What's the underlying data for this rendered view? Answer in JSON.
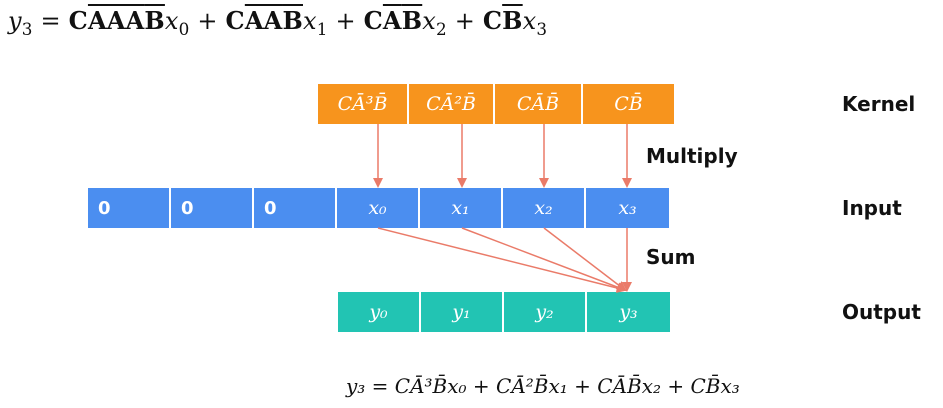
{
  "top_equation": "y₃ = CĀĀĀB̄x₀ + CĀĀB̄x₁ + CĀB̄x₂ + CB̄x₃",
  "kernel": {
    "label": "Kernel",
    "cells": [
      "CĀ³B̄",
      "CĀ²B̄",
      "CĀB̄",
      "CB̄"
    ]
  },
  "multiply_label": "Multiply",
  "input": {
    "label": "Input",
    "cells": [
      "0",
      "0",
      "0",
      "x₀",
      "x₁",
      "x₂",
      "x₃"
    ]
  },
  "sum_label": "Sum",
  "output": {
    "label": "Output",
    "cells": [
      "y₀",
      "y₁",
      "y₂",
      "y₃"
    ]
  },
  "bottom_equation": "y₃ = CĀ³B̄x₀ + CĀ²B̄x₁ + CĀB̄x₂ + CB̄x₃",
  "colors": {
    "kernel": "#f7941d",
    "input": "#4b8ef0",
    "output": "#22c4b3",
    "arrow": "#ea7b69"
  }
}
